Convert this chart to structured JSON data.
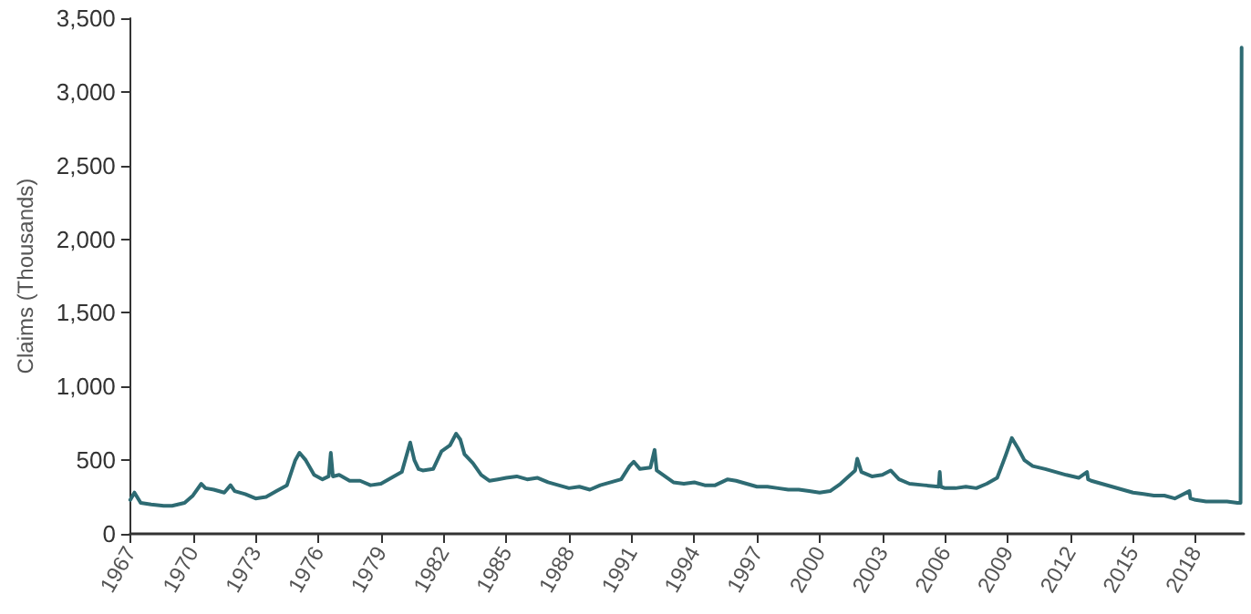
{
  "chart_data": {
    "type": "line",
    "ylabel": "Claims (Thousands)",
    "color": "#2e6b73",
    "grid": false,
    "marker": "none",
    "line_style": "solid",
    "xlim": [
      1967,
      2020.3
    ],
    "xticks": [
      1967,
      1970,
      1973,
      1976,
      1979,
      1982,
      1985,
      1988,
      1991,
      1994,
      1997,
      2000,
      2003,
      2006,
      2009,
      2012,
      2015,
      2018
    ],
    "ylim": [
      0,
      3500
    ],
    "yticks": [
      {
        "value": 0,
        "label": "0"
      },
      {
        "value": 500,
        "label": "500"
      },
      {
        "value": 1000,
        "label": "1,000"
      },
      {
        "value": 1500,
        "label": "1,500"
      },
      {
        "value": 2000,
        "label": "2,000"
      },
      {
        "value": 2500,
        "label": "2,500"
      },
      {
        "value": 3000,
        "label": "3,000"
      },
      {
        "value": 3500,
        "label": "3,500"
      }
    ],
    "x": [
      1967.0,
      1967.2,
      1967.5,
      1968.0,
      1968.6,
      1969.0,
      1969.6,
      1970.0,
      1970.4,
      1970.6,
      1971.0,
      1971.5,
      1971.8,
      1972.0,
      1972.5,
      1973.0,
      1973.5,
      1974.0,
      1974.5,
      1974.9,
      1975.1,
      1975.4,
      1975.8,
      1976.2,
      1976.5,
      1976.6,
      1976.7,
      1977.0,
      1977.5,
      1978.0,
      1978.5,
      1979.0,
      1979.5,
      1980.0,
      1980.4,
      1980.6,
      1980.8,
      1981.0,
      1981.5,
      1981.9,
      1982.3,
      1982.6,
      1982.8,
      1983.0,
      1983.4,
      1983.8,
      1984.2,
      1984.6,
      1985.0,
      1985.5,
      1986.0,
      1986.5,
      1987.0,
      1987.5,
      1988.0,
      1988.5,
      1989.0,
      1989.5,
      1990.0,
      1990.5,
      1990.9,
      1991.1,
      1991.4,
      1991.9,
      1992.1,
      1992.2,
      1992.4,
      1993.0,
      1993.5,
      1994.0,
      1994.5,
      1995.0,
      1995.6,
      1996.0,
      1996.5,
      1997.0,
      1997.5,
      1998.0,
      1998.5,
      1999.0,
      1999.5,
      2000.0,
      2000.5,
      2001.0,
      2001.7,
      2001.8,
      2002.0,
      2002.5,
      2003.0,
      2003.4,
      2003.8,
      2004.3,
      2005.0,
      2005.7,
      2005.75,
      2005.8,
      2006.0,
      2006.5,
      2007.0,
      2007.5,
      2008.0,
      2008.5,
      2008.9,
      2009.2,
      2009.5,
      2009.8,
      2010.2,
      2010.8,
      2011.3,
      2011.8,
      2012.4,
      2012.8,
      2012.85,
      2013.0,
      2013.5,
      2014.0,
      2014.5,
      2015.0,
      2015.5,
      2016.0,
      2016.5,
      2017.0,
      2017.7,
      2017.75,
      2018.0,
      2018.5,
      2019.0,
      2019.5,
      2020.0,
      2020.15,
      2020.2
    ],
    "values": [
      230,
      280,
      210,
      200,
      190,
      190,
      210,
      260,
      340,
      310,
      300,
      280,
      330,
      290,
      270,
      240,
      250,
      290,
      330,
      500,
      550,
      500,
      400,
      370,
      390,
      550,
      390,
      400,
      360,
      360,
      330,
      340,
      380,
      420,
      620,
      500,
      440,
      430,
      440,
      560,
      600,
      680,
      640,
      540,
      480,
      400,
      360,
      370,
      380,
      390,
      370,
      380,
      350,
      330,
      310,
      320,
      300,
      330,
      350,
      370,
      460,
      490,
      440,
      450,
      570,
      430,
      410,
      350,
      340,
      350,
      330,
      330,
      370,
      360,
      340,
      320,
      320,
      310,
      300,
      300,
      290,
      280,
      290,
      340,
      430,
      510,
      420,
      390,
      400,
      430,
      370,
      340,
      330,
      320,
      420,
      320,
      310,
      310,
      320,
      310,
      340,
      380,
      530,
      650,
      580,
      500,
      460,
      440,
      420,
      400,
      380,
      420,
      370,
      360,
      340,
      320,
      300,
      280,
      270,
      260,
      260,
      240,
      290,
      240,
      230,
      220,
      220,
      220,
      210,
      210,
      3300
    ]
  }
}
